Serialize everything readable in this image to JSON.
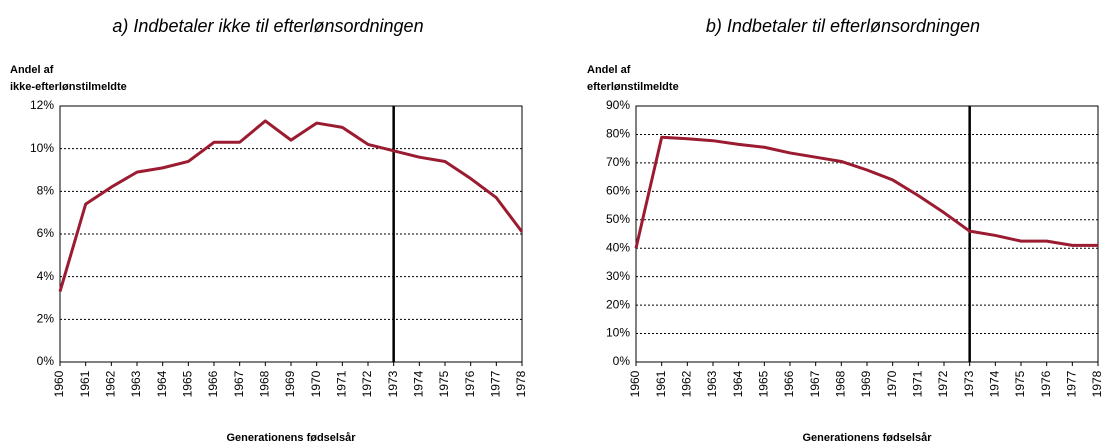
{
  "chart_data": [
    {
      "type": "line",
      "title": "a) Indbetaler ikke til efterlønsordningen",
      "ylabel": [
        "Andel af",
        "ikke-efterlønstilmeldte"
      ],
      "xlabel": "Generationens fødselsår",
      "x": [
        1960,
        1961,
        1962,
        1963,
        1964,
        1965,
        1966,
        1967,
        1968,
        1969,
        1970,
        1971,
        1972,
        1973,
        1974,
        1975,
        1976,
        1977,
        1978
      ],
      "values": [
        3.3,
        7.4,
        8.2,
        8.9,
        9.1,
        9.4,
        10.3,
        10.3,
        11.3,
        10.4,
        11.2,
        11.0,
        10.2,
        9.9,
        9.6,
        9.4,
        8.6,
        7.7,
        6.1
      ],
      "color": "#9b1b30",
      "xlim": [
        1960,
        1978
      ],
      "xticks": [
        1960,
        1961,
        1962,
        1963,
        1964,
        1965,
        1966,
        1967,
        1968,
        1969,
        1970,
        1971,
        1972,
        1973,
        1974,
        1975,
        1976,
        1977,
        1978
      ],
      "ylim": [
        0,
        12
      ],
      "yticks": [
        {
          "value": 0,
          "label": "0%"
        },
        {
          "value": 2,
          "label": "2%"
        },
        {
          "value": 4,
          "label": "4%"
        },
        {
          "value": 6,
          "label": "6%"
        },
        {
          "value": 8,
          "label": "8%"
        },
        {
          "value": 10,
          "label": "10%"
        },
        {
          "value": 12,
          "label": "12%"
        }
      ],
      "grid": true,
      "vline": 1973
    },
    {
      "type": "line",
      "title": "b) Indbetaler til efterlønsordningen",
      "ylabel": [
        "Andel af",
        "efterlønstilmeldte"
      ],
      "xlabel": "Generationens fødselsår",
      "x": [
        1960,
        1961,
        1962,
        1963,
        1964,
        1965,
        1966,
        1967,
        1968,
        1969,
        1970,
        1971,
        1972,
        1973,
        1974,
        1975,
        1976,
        1977,
        1978
      ],
      "values": [
        40,
        79,
        78.5,
        77.8,
        76.5,
        75.5,
        73.5,
        72,
        70.5,
        67.5,
        64,
        58.5,
        52.5,
        46,
        44.5,
        42.5,
        42.5,
        41,
        41
      ],
      "color": "#9b1b30",
      "xlim": [
        1960,
        1978
      ],
      "xticks": [
        1960,
        1961,
        1962,
        1963,
        1964,
        1965,
        1966,
        1967,
        1968,
        1969,
        1970,
        1971,
        1972,
        1973,
        1974,
        1975,
        1976,
        1977,
        1978
      ],
      "ylim": [
        0,
        90
      ],
      "yticks": [
        {
          "value": 0,
          "label": "0%"
        },
        {
          "value": 10,
          "label": "10%"
        },
        {
          "value": 20,
          "label": "20%"
        },
        {
          "value": 30,
          "label": "30%"
        },
        {
          "value": 40,
          "label": "40%"
        },
        {
          "value": 50,
          "label": "50%"
        },
        {
          "value": 60,
          "label": "60%"
        },
        {
          "value": 70,
          "label": "70%"
        },
        {
          "value": 80,
          "label": "80%"
        },
        {
          "value": 90,
          "label": "90%"
        }
      ],
      "grid": true,
      "vline": 1973
    }
  ]
}
